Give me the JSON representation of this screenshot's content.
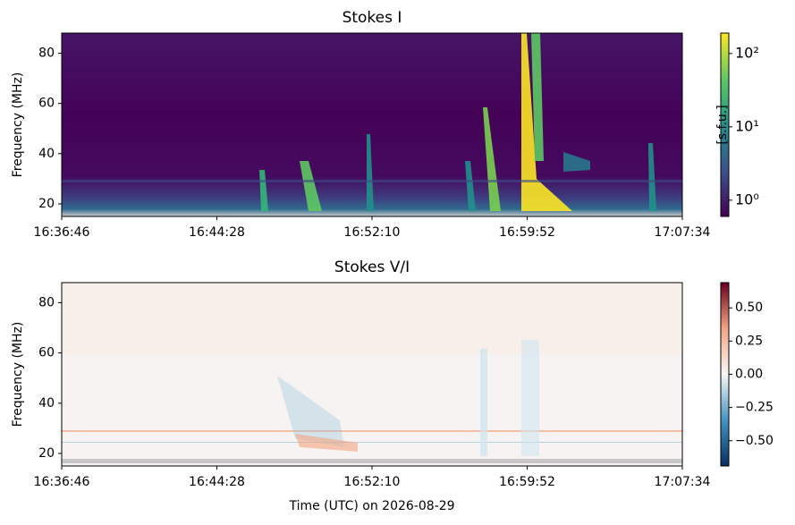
{
  "chart_data": [
    {
      "type": "heatmap",
      "title": "Stokes I",
      "ylabel": "Frequency (MHz)",
      "xticks": [
        "16:36:46",
        "16:44:28",
        "16:52:10",
        "16:59:52",
        "17:07:34"
      ],
      "ylim": [
        15,
        88
      ],
      "yticks": [
        20,
        40,
        60,
        80
      ],
      "colorbar_label": "[s.f.u.]",
      "colorbar_scale": "log",
      "clim": [
        0.6,
        190
      ],
      "colorbar_ticks": [
        {
          "value": 1,
          "label": "10⁰"
        },
        {
          "value": 10,
          "label": "10¹"
        },
        {
          "value": 100,
          "label": "10²"
        }
      ],
      "colormap": [
        "#440154",
        "#3b528b",
        "#21918c",
        "#5ec962",
        "#fde725"
      ]
    },
    {
      "type": "heatmap",
      "title": "Stokes V/I",
      "ylabel": "Frequency (MHz)",
      "xlabel": "Time (UTC) on 2026-08-29",
      "xticks": [
        "16:36:46",
        "16:44:28",
        "16:52:10",
        "16:59:52",
        "17:07:34"
      ],
      "ylim": [
        15,
        88
      ],
      "yticks": [
        20,
        40,
        60,
        80
      ],
      "colorbar_scale": "linear",
      "clim": [
        -0.69,
        0.69
      ],
      "colorbar_ticks": [
        {
          "value": 0.5,
          "label": "0.50"
        },
        {
          "value": 0.25,
          "label": "0.25"
        },
        {
          "value": 0,
          "label": "0.00"
        },
        {
          "value": -0.25,
          "label": "−0.25"
        },
        {
          "value": -0.5,
          "label": "−0.50"
        }
      ],
      "colormap": [
        "#053061",
        "#4393c3",
        "#f7f7f7",
        "#f4a582",
        "#67001f"
      ]
    }
  ]
}
